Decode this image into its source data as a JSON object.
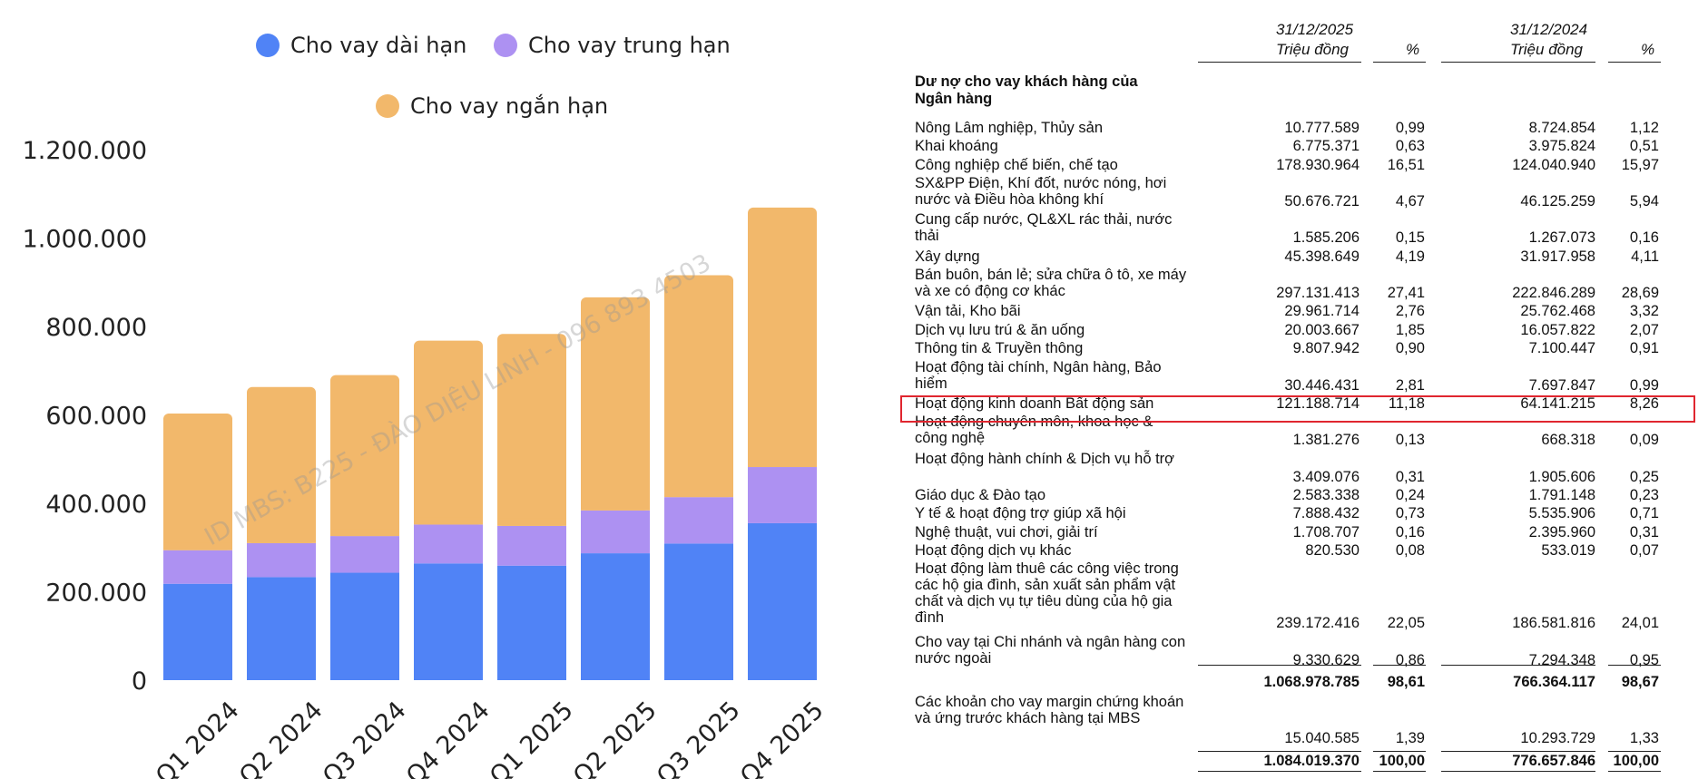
{
  "chart_data": {
    "type": "bar",
    "stacked": true,
    "categories": [
      "Q1 2024",
      "Q2 2024",
      "Q3 2024",
      "Q4 2024",
      "Q1 2025",
      "Q2 2025",
      "Q3 2025",
      "Q4 2025"
    ],
    "series": [
      {
        "name": "Cho vay dài hạn",
        "color": "#5083f6",
        "values": [
          218000,
          233000,
          243000,
          264000,
          259000,
          287000,
          309000,
          355000
        ]
      },
      {
        "name": "Cho vay trung hạn",
        "color": "#ad91f2",
        "values": [
          76000,
          77000,
          83000,
          88000,
          90000,
          97000,
          105000,
          127000
        ]
      },
      {
        "name": "Cho vay ngắn hạn",
        "color": "#f2b86b",
        "values": [
          309000,
          353000,
          364000,
          416000,
          434000,
          482000,
          502000,
          587000
        ]
      }
    ],
    "ylim": [
      0,
      1200000
    ],
    "yticks": [
      "0",
      "200.000",
      "400.000",
      "600.000",
      "800.000",
      "1.000.000",
      "1.200.000"
    ],
    "grid": false,
    "legend": "top"
  },
  "watermark": "ID MBS: B225 - ĐÀO DIỆU LINH - 096 893 4503",
  "table": {
    "header": {
      "date_2025": "31/12/2025",
      "date_2024": "31/12/2024",
      "unit": "Triệu đồng",
      "pct": "%"
    },
    "section_title": "Dư nợ cho vay khách hàng của Ngân hàng",
    "rows": [
      {
        "label": "Nông Lâm nghiệp, Thủy sản",
        "v2025": "10.777.589",
        "p2025": "0,99",
        "v2024": "8.724.854",
        "p2024": "1,12"
      },
      {
        "label": "Khai khoáng",
        "v2025": "6.775.371",
        "p2025": "0,63",
        "v2024": "3.975.824",
        "p2024": "0,51"
      },
      {
        "label": "Công nghiệp chế biến, chế tạo",
        "v2025": "178.930.964",
        "p2025": "16,51",
        "v2024": "124.040.940",
        "p2024": "15,97"
      },
      {
        "label": "SX&PP Điện, Khí đốt, nước nóng, hơi nước và Điều hòa không khí",
        "v2025": "50.676.721",
        "p2025": "4,67",
        "v2024": "46.125.259",
        "p2024": "5,94"
      },
      {
        "label": "Cung cấp nước, QL&XL rác thải, nước thải",
        "v2025": "1.585.206",
        "p2025": "0,15",
        "v2024": "1.267.073",
        "p2024": "0,16"
      },
      {
        "label": "Xây dựng",
        "v2025": "45.398.649",
        "p2025": "4,19",
        "v2024": "31.917.958",
        "p2024": "4,11"
      },
      {
        "label": "Bán buôn, bán lẻ; sửa chữa ô tô, xe máy và xe có động cơ khác",
        "v2025": "297.131.413",
        "p2025": "27,41",
        "v2024": "222.846.289",
        "p2024": "28,69"
      },
      {
        "label": "Vận tải, Kho bãi",
        "v2025": "29.961.714",
        "p2025": "2,76",
        "v2024": "25.762.468",
        "p2024": "3,32"
      },
      {
        "label": "Dịch vụ lưu trú & ăn uống",
        "v2025": "20.003.667",
        "p2025": "1,85",
        "v2024": "16.057.822",
        "p2024": "2,07"
      },
      {
        "label": "Thông tin & Truyền thông",
        "v2025": "9.807.942",
        "p2025": "0,90",
        "v2024": "7.100.447",
        "p2024": "0,91"
      },
      {
        "label": "Hoạt động tài chính, Ngân hàng, Bảo hiểm",
        "v2025": "30.446.431",
        "p2025": "2,81",
        "v2024": "7.697.847",
        "p2024": "0,99"
      },
      {
        "label": "Hoạt động kinh doanh Bất động sản",
        "v2025": "121.188.714",
        "p2025": "11,18",
        "v2024": "64.141.215",
        "p2024": "8,26"
      },
      {
        "label": "Hoạt động chuyên môn, khoa học & công nghệ",
        "v2025": "1.381.276",
        "p2025": "0,13",
        "v2024": "668.318",
        "p2024": "0,09"
      },
      {
        "label": "Hoạt động hành chính & Dịch vụ hỗ trợ",
        "v2025": "3.409.076",
        "p2025": "0,31",
        "v2024": "1.905.606",
        "p2024": "0,25"
      },
      {
        "label": "Giáo dục & Đào tạo",
        "v2025": "2.583.338",
        "p2025": "0,24",
        "v2024": "1.791.148",
        "p2024": "0,23"
      },
      {
        "label": "Y tế & hoạt động trợ giúp xã hội",
        "v2025": "7.888.432",
        "p2025": "0,73",
        "v2024": "5.535.906",
        "p2024": "0,71"
      },
      {
        "label": "Nghệ thuật, vui chơi, giải trí",
        "v2025": "1.708.707",
        "p2025": "0,16",
        "v2024": "2.395.960",
        "p2024": "0,31"
      },
      {
        "label": "Hoạt động dịch vụ khác",
        "v2025": "820.530",
        "p2025": "0,08",
        "v2024": "533.019",
        "p2024": "0,07"
      },
      {
        "label": "Hoạt động làm thuê các công việc trong các hộ gia đình, sản xuất sản phẩm vật chất và dịch vụ tự tiêu dùng của hộ gia đình",
        "v2025": "239.172.416",
        "p2025": "22,05",
        "v2024": "186.581.816",
        "p2024": "24,01"
      },
      {
        "label": "Cho vay tại Chi nhánh và ngân hàng con nước ngoài",
        "v2025": "9.330.629",
        "p2025": "0,86",
        "v2024": "7.294.348",
        "p2024": "0,95"
      }
    ],
    "subtotal": {
      "v2025": "1.068.978.785",
      "p2025": "98,61",
      "v2024": "766.364.117",
      "p2024": "98,67"
    },
    "margin": {
      "label": "Các khoản cho vay margin chứng khoán và ứng trước khách hàng tại MBS",
      "v2025": "15.040.585",
      "p2025": "1,39",
      "v2024": "10.293.729",
      "p2024": "1,33"
    },
    "total": {
      "v2025": "1.084.019.370",
      "p2025": "100,00",
      "v2024": "776.657.846",
      "p2024": "100,00"
    }
  }
}
